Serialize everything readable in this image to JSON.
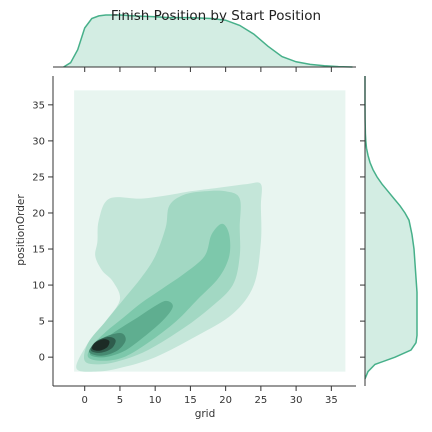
{
  "chart_data": {
    "type": "kde-jointplot",
    "title": "Finish Position by Start Position",
    "xlabel": "grid",
    "ylabel": "positionOrder",
    "xlim": [
      -4.5,
      38.5
    ],
    "ylim": [
      -4,
      39
    ],
    "xticks": [
      0,
      5,
      10,
      15,
      20,
      25,
      30,
      35
    ],
    "yticks": [
      0,
      5,
      10,
      15,
      20,
      25,
      30,
      35
    ],
    "grid": false,
    "legend": "none",
    "colors": {
      "fill_lightest": "#e8f5f0",
      "fill_level_1": "#c4e6d9",
      "fill_level_2": "#a2d8c3",
      "fill_level_3": "#7dc8ab",
      "fill_level_4": "#5fae90",
      "fill_level_5": "#468a71",
      "fill_level_6": "#2f5c4c",
      "fill_darkest": "#1c2b25",
      "marginal_line": "#47b08a",
      "marginal_fill": "#d3ede3"
    },
    "joint_kde_levels": [
      {
        "level": 0,
        "points": [
          [
            -1.5,
            -2
          ],
          [
            37,
            -2
          ],
          [
            37,
            37
          ],
          [
            -1.5,
            37
          ]
        ]
      },
      {
        "level": 1,
        "points": [
          [
            -1.2,
            -1.5
          ],
          [
            1.5,
            -2
          ],
          [
            5,
            -1.5
          ],
          [
            10,
            0
          ],
          [
            16,
            3
          ],
          [
            21,
            6
          ],
          [
            24,
            10
          ],
          [
            25,
            16
          ],
          [
            25,
            21
          ],
          [
            25,
            24
          ],
          [
            23,
            24
          ],
          [
            19,
            23.5
          ],
          [
            15,
            23
          ],
          [
            12,
            22.5
          ],
          [
            8,
            22
          ],
          [
            3.5,
            22
          ],
          [
            2,
            19
          ],
          [
            1.8,
            16
          ],
          [
            1.5,
            14
          ],
          [
            2.5,
            12
          ],
          [
            4,
            10.5
          ],
          [
            5,
            8
          ],
          [
            3,
            5
          ],
          [
            0.5,
            2
          ]
        ]
      },
      {
        "level": 2,
        "points": [
          [
            0,
            -0.5
          ],
          [
            2,
            -1
          ],
          [
            5,
            -0.5
          ],
          [
            9,
            1
          ],
          [
            14,
            4
          ],
          [
            18,
            7
          ],
          [
            21,
            10
          ],
          [
            22,
            14
          ],
          [
            22,
            18
          ],
          [
            22,
            22
          ],
          [
            20,
            23
          ],
          [
            17,
            23
          ],
          [
            14,
            22.5
          ],
          [
            12,
            21
          ],
          [
            11.5,
            18
          ],
          [
            10,
            14
          ],
          [
            8,
            11
          ],
          [
            5.5,
            8
          ],
          [
            3,
            5
          ],
          [
            0.5,
            2
          ]
        ]
      },
      {
        "level": 3,
        "points": [
          [
            0.5,
            0
          ],
          [
            2.5,
            -0.5
          ],
          [
            5.5,
            0
          ],
          [
            9,
            2
          ],
          [
            13,
            5
          ],
          [
            16,
            8
          ],
          [
            19,
            11
          ],
          [
            20.5,
            14
          ],
          [
            20.5,
            17
          ],
          [
            19.5,
            18.5
          ],
          [
            18,
            17
          ],
          [
            17,
            14
          ],
          [
            14,
            11.5
          ],
          [
            11,
            9.5
          ],
          [
            8,
            7.5
          ],
          [
            5.5,
            5.5
          ],
          [
            3,
            3.5
          ],
          [
            1,
            1.5
          ]
        ]
      },
      {
        "level": 4,
        "points": [
          [
            0.8,
            0.3
          ],
          [
            2.8,
            0
          ],
          [
            5.5,
            0.8
          ],
          [
            8,
            2.5
          ],
          [
            11,
            5
          ],
          [
            12.5,
            7
          ],
          [
            11.5,
            7.8
          ],
          [
            9.5,
            6.8
          ],
          [
            7.5,
            5.5
          ],
          [
            5.5,
            4.3
          ],
          [
            3.2,
            2.8
          ],
          [
            1.4,
            1.4
          ]
        ]
      },
      {
        "level": 5,
        "points": [
          [
            0.7,
            0.6
          ],
          [
            2.4,
            0.2
          ],
          [
            4.6,
            0.9
          ],
          [
            5.8,
            2.3
          ],
          [
            5.3,
            3.3
          ],
          [
            3.7,
            3.1
          ],
          [
            2.1,
            2.4
          ],
          [
            1,
            1.5
          ]
        ]
      },
      {
        "level": 6,
        "points": [
          [
            0.9,
            0.9
          ],
          [
            2.2,
            0.6
          ],
          [
            3.8,
            1.2
          ],
          [
            4.4,
            2.3
          ],
          [
            3.6,
            2.8
          ],
          [
            2.2,
            2.5
          ],
          [
            1.2,
            1.8
          ]
        ]
      },
      {
        "level": 7,
        "points": [
          [
            1.1,
            1.1
          ],
          [
            2.1,
            0.9
          ],
          [
            3.2,
            1.4
          ],
          [
            3.5,
            2.2
          ],
          [
            2.8,
            2.5
          ],
          [
            1.8,
            2.2
          ],
          [
            1.2,
            1.7
          ]
        ]
      }
    ],
    "marginal_x_density": {
      "x": [
        -3,
        -2,
        -1,
        0,
        1,
        2,
        3,
        5,
        7,
        10,
        12,
        15,
        18,
        20,
        22,
        24,
        26,
        28,
        30,
        32,
        34,
        36,
        38
      ],
      "density": [
        0.0,
        0.005,
        0.02,
        0.045,
        0.056,
        0.059,
        0.06,
        0.06,
        0.059,
        0.058,
        0.057,
        0.057,
        0.056,
        0.054,
        0.048,
        0.038,
        0.024,
        0.012,
        0.006,
        0.003,
        0.0015,
        0.0005,
        0.0
      ]
    },
    "marginal_y_density": {
      "y": [
        -3,
        -2,
        -1,
        0,
        1,
        2,
        3,
        5,
        7,
        9,
        11,
        13,
        15,
        17,
        19,
        20,
        21,
        22,
        23,
        24,
        25,
        26,
        27,
        28,
        29,
        30,
        31,
        33,
        35,
        37,
        39
      ],
      "density": [
        0.0,
        0.003,
        0.01,
        0.03,
        0.046,
        0.051,
        0.052,
        0.052,
        0.052,
        0.052,
        0.051,
        0.05,
        0.049,
        0.047,
        0.044,
        0.04,
        0.035,
        0.029,
        0.023,
        0.017,
        0.012,
        0.008,
        0.005,
        0.003,
        0.0015,
        0.0008,
        0.0004,
        0.0001,
        0.0,
        0.0,
        0.0
      ]
    }
  }
}
